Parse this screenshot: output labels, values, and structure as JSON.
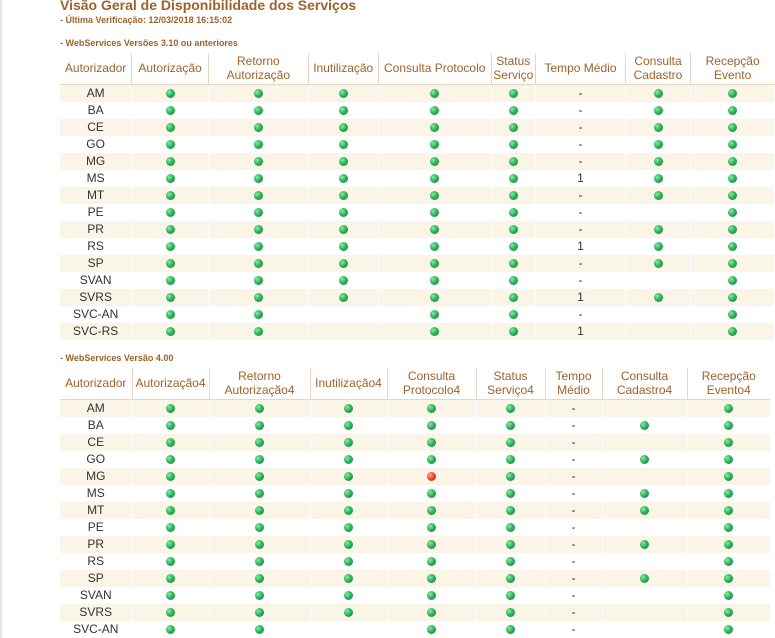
{
  "page": {
    "title": "Visão Geral de Disponibilidade dos Serviços",
    "last_check": "- Última Verificação: 12/03/2018 16:15:02"
  },
  "colors": {
    "accent": "#a0622a",
    "row_alt": "#fbf5e7",
    "ok": "#2db55a",
    "error": "#ee4a2c"
  },
  "icons": {
    "ok": "green-status-icon",
    "error": "red-status-icon"
  },
  "sections": [
    {
      "label": "- WebServices Versões 3.10 ou anteriores",
      "headers": [
        "Autorizador",
        "Autorização",
        "Retorno Autorização",
        "Inutilização",
        "Consulta Protocolo",
        "Status Serviço",
        "Tempo Médio",
        "Consulta Cadastro",
        "Recepção Evento"
      ],
      "rows": [
        {
          "name": "AM",
          "cells": [
            "ok",
            "ok",
            "ok",
            "ok",
            "ok",
            "-",
            "ok",
            "ok"
          ]
        },
        {
          "name": "BA",
          "cells": [
            "ok",
            "ok",
            "ok",
            "ok",
            "ok",
            "-",
            "ok",
            "ok"
          ]
        },
        {
          "name": "CE",
          "cells": [
            "ok",
            "ok",
            "ok",
            "ok",
            "ok",
            "-",
            "ok",
            "ok"
          ]
        },
        {
          "name": "GO",
          "cells": [
            "ok",
            "ok",
            "ok",
            "ok",
            "ok",
            "-",
            "ok",
            "ok"
          ]
        },
        {
          "name": "MG",
          "cells": [
            "ok",
            "ok",
            "ok",
            "ok",
            "ok",
            "-",
            "ok",
            "ok"
          ]
        },
        {
          "name": "MS",
          "cells": [
            "ok",
            "ok",
            "ok",
            "ok",
            "ok",
            "1",
            "ok",
            "ok"
          ]
        },
        {
          "name": "MT",
          "cells": [
            "ok",
            "ok",
            "ok",
            "ok",
            "ok",
            "-",
            "ok",
            "ok"
          ]
        },
        {
          "name": "PE",
          "cells": [
            "ok",
            "ok",
            "ok",
            "ok",
            "ok",
            "-",
            "",
            "ok"
          ]
        },
        {
          "name": "PR",
          "cells": [
            "ok",
            "ok",
            "ok",
            "ok",
            "ok",
            "-",
            "ok",
            "ok"
          ]
        },
        {
          "name": "RS",
          "cells": [
            "ok",
            "ok",
            "ok",
            "ok",
            "ok",
            "1",
            "ok",
            "ok"
          ]
        },
        {
          "name": "SP",
          "cells": [
            "ok",
            "ok",
            "ok",
            "ok",
            "ok",
            "-",
            "ok",
            "ok"
          ]
        },
        {
          "name": "SVAN",
          "cells": [
            "ok",
            "ok",
            "ok",
            "ok",
            "ok",
            "-",
            "",
            "ok"
          ]
        },
        {
          "name": "SVRS",
          "cells": [
            "ok",
            "ok",
            "ok",
            "ok",
            "ok",
            "1",
            "ok",
            "ok"
          ]
        },
        {
          "name": "SVC-AN",
          "cells": [
            "ok",
            "ok",
            "",
            "ok",
            "ok",
            "-",
            "",
            "ok"
          ]
        },
        {
          "name": "SVC-RS",
          "cells": [
            "ok",
            "ok",
            "",
            "ok",
            "ok",
            "1",
            "",
            "ok"
          ]
        }
      ]
    },
    {
      "label": "- WebServices Versão 4.00",
      "headers": [
        "Autorizador",
        "Autorização4",
        "Retorno Autorização4",
        "Inutilização4",
        "Consulta Protocolo4",
        "Status Serviço4",
        "Tempo Médio",
        "Consulta Cadastro4",
        "Recepção Evento4"
      ],
      "rows": [
        {
          "name": "AM",
          "cells": [
            "ok",
            "ok",
            "ok",
            "ok",
            "ok",
            "-",
            "",
            "ok"
          ]
        },
        {
          "name": "BA",
          "cells": [
            "ok",
            "ok",
            "ok",
            "ok",
            "ok",
            "-",
            "ok",
            "ok"
          ]
        },
        {
          "name": "CE",
          "cells": [
            "ok",
            "ok",
            "ok",
            "ok",
            "ok",
            "-",
            "",
            "ok"
          ]
        },
        {
          "name": "GO",
          "cells": [
            "ok",
            "ok",
            "ok",
            "ok",
            "ok",
            "-",
            "ok",
            "ok"
          ]
        },
        {
          "name": "MG",
          "cells": [
            "ok",
            "ok",
            "ok",
            "error",
            "ok",
            "-",
            "",
            "ok"
          ]
        },
        {
          "name": "MS",
          "cells": [
            "ok",
            "ok",
            "ok",
            "ok",
            "ok",
            "-",
            "ok",
            "ok"
          ]
        },
        {
          "name": "MT",
          "cells": [
            "ok",
            "ok",
            "ok",
            "ok",
            "ok",
            "-",
            "ok",
            "ok"
          ]
        },
        {
          "name": "PE",
          "cells": [
            "ok",
            "ok",
            "ok",
            "ok",
            "ok",
            "-",
            "",
            "ok"
          ]
        },
        {
          "name": "PR",
          "cells": [
            "ok",
            "ok",
            "ok",
            "ok",
            "ok",
            "-",
            "ok",
            "ok"
          ]
        },
        {
          "name": "RS",
          "cells": [
            "ok",
            "ok",
            "ok",
            "ok",
            "ok",
            "-",
            "",
            "ok"
          ]
        },
        {
          "name": "SP",
          "cells": [
            "ok",
            "ok",
            "ok",
            "ok",
            "ok",
            "-",
            "ok",
            "ok"
          ]
        },
        {
          "name": "SVAN",
          "cells": [
            "ok",
            "ok",
            "ok",
            "ok",
            "ok",
            "-",
            "",
            "ok"
          ]
        },
        {
          "name": "SVRS",
          "cells": [
            "ok",
            "ok",
            "ok",
            "ok",
            "ok",
            "-",
            "",
            "ok"
          ]
        },
        {
          "name": "SVC-AN",
          "cells": [
            "ok",
            "ok",
            "",
            "ok",
            "ok",
            "-",
            "",
            "ok"
          ]
        }
      ]
    }
  ]
}
